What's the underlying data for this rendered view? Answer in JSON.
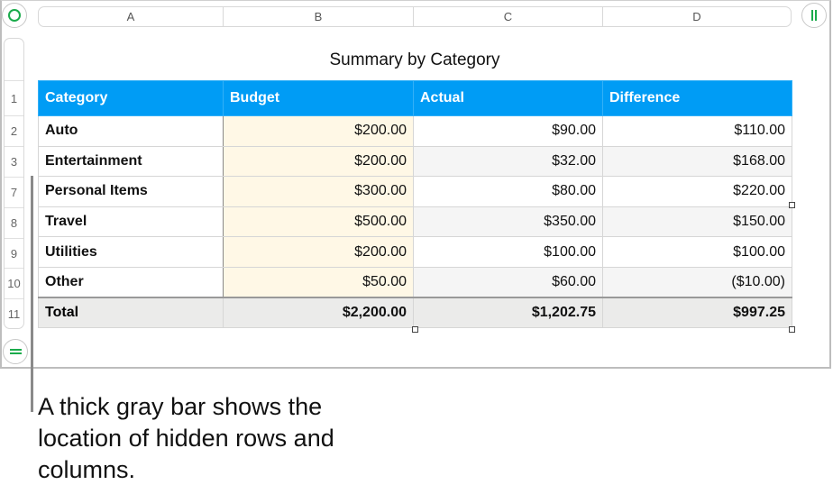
{
  "columns": [
    "A",
    "B",
    "C",
    "D"
  ],
  "row_numbers": [
    "1",
    "2",
    "3",
    "7",
    "8",
    "9",
    "10",
    "11"
  ],
  "title": "Summary by Category",
  "headers": [
    "Category",
    "Budget",
    "Actual",
    "Difference"
  ],
  "rows": [
    {
      "cat": "Auto",
      "budget": "$200.00",
      "actual": "$90.00",
      "diff": "$110.00"
    },
    {
      "cat": "Entertainment",
      "budget": "$200.00",
      "actual": "$32.00",
      "diff": "$168.00"
    },
    {
      "cat": "Personal Items",
      "budget": "$300.00",
      "actual": "$80.00",
      "diff": "$220.00"
    },
    {
      "cat": "Travel",
      "budget": "$500.00",
      "actual": "$350.00",
      "diff": "$150.00"
    },
    {
      "cat": "Utilities",
      "budget": "$200.00",
      "actual": "$100.00",
      "diff": "$100.00"
    },
    {
      "cat": "Other",
      "budget": "$50.00",
      "actual": "$60.00",
      "diff": "($10.00)"
    }
  ],
  "total": {
    "cat": "Total",
    "budget": "$2,200.00",
    "actual": "$1,202.75",
    "diff": "$997.25"
  },
  "callout": "A thick gray bar shows the location of hidden rows and columns.",
  "colors": {
    "header": "#009cf5",
    "negative": "#e00000",
    "budget_fill": "#fff8e6",
    "control_green": "#1aab4b"
  }
}
